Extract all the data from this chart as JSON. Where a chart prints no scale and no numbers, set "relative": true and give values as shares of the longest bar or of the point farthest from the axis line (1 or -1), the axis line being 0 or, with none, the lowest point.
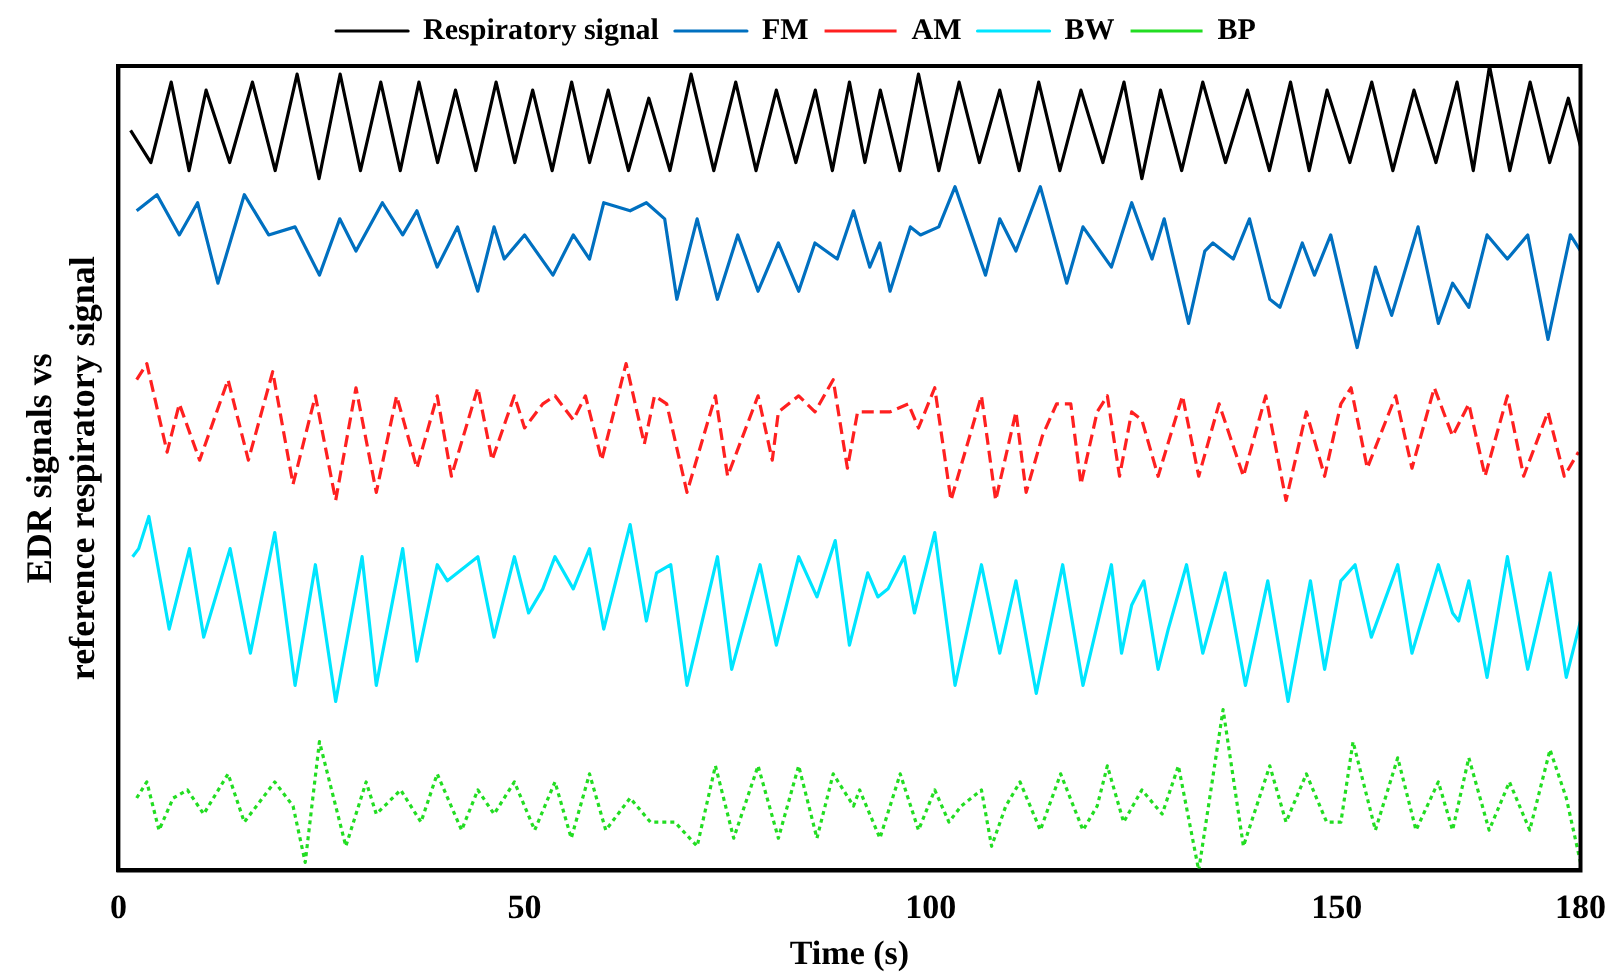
{
  "chart_data": {
    "type": "line",
    "relative": true,
    "xlabel": "Time (s)",
    "ylabel": "EDR signals vs\nreference respiratory signal",
    "xlim": [
      0,
      180
    ],
    "xticks": [
      0,
      50,
      100,
      150,
      180
    ],
    "grid": false,
    "legend": "top",
    "marker": "none",
    "series": [
      {
        "name": "Respiratory signal",
        "color": "#000000",
        "line_style": "solid",
        "x": [
          1.5,
          4,
          6.5,
          8.7,
          10.8,
          13.7,
          16.5,
          19.3,
          22,
          24.7,
          27.3,
          29.8,
          32.3,
          34.7,
          37,
          39.3,
          41.5,
          44,
          46.5,
          48.8,
          51,
          53.4,
          55.8,
          58,
          60.3,
          62.8,
          65.3,
          67.9,
          70.5,
          73.3,
          76,
          78.5,
          81,
          83.4,
          85.8,
          87.9,
          90,
          91.9,
          93.8,
          96.2,
          98.5,
          101,
          103.5,
          106,
          108.5,
          110.9,
          113.3,
          115.9,
          118.5,
          121.2,
          123.8,
          126,
          128.3,
          130.9,
          133.5,
          136.3,
          139,
          141.7,
          144.3,
          146.6,
          148.8,
          151.6,
          154.3,
          156.9,
          159.5,
          162.2,
          164.8,
          166.8,
          168.8,
          171.3,
          173.8,
          176.2,
          178.5,
          180
        ],
        "values": [
          0.92,
          0.88,
          0.98,
          0.87,
          0.97,
          0.88,
          0.98,
          0.87,
          0.99,
          0.86,
          0.99,
          0.87,
          0.98,
          0.87,
          0.98,
          0.88,
          0.97,
          0.87,
          0.98,
          0.88,
          0.97,
          0.87,
          0.98,
          0.88,
          0.97,
          0.87,
          0.96,
          0.87,
          0.99,
          0.87,
          0.98,
          0.87,
          0.97,
          0.88,
          0.97,
          0.87,
          0.98,
          0.88,
          0.97,
          0.87,
          0.99,
          0.87,
          0.98,
          0.88,
          0.97,
          0.87,
          0.98,
          0.87,
          0.97,
          0.88,
          0.98,
          0.86,
          0.97,
          0.87,
          0.98,
          0.88,
          0.97,
          0.87,
          0.98,
          0.87,
          0.97,
          0.88,
          0.98,
          0.87,
          0.97,
          0.88,
          0.98,
          0.87,
          1.0,
          0.87,
          0.98,
          0.88,
          0.96,
          0.9
        ]
      },
      {
        "name": "FM",
        "color": "#0070c0",
        "line_style": "solid",
        "x": [
          2.25,
          4.75,
          7.5,
          9.75,
          12.25,
          15.5,
          18.5,
          21.75,
          24.75,
          27.25,
          29.25,
          32.5,
          35,
          36.75,
          39.25,
          41.75,
          44.25,
          46.25,
          47.5,
          50,
          53.5,
          56,
          58,
          59.75,
          63,
          65,
          67.25,
          68.75,
          71.25,
          73.75,
          76.25,
          78.75,
          81.25,
          83.75,
          85.75,
          88.5,
          90.5,
          92.5,
          93.75,
          95,
          97.5,
          98.75,
          101,
          103,
          106.75,
          108.5,
          110.5,
          113.5,
          116.75,
          118.75,
          122.25,
          124.75,
          127.25,
          128.75,
          131.75,
          133.75,
          134.75,
          137.25,
          139.25,
          141.75,
          143,
          145.75,
          147.25,
          149.25,
          152.5,
          154.75,
          156.75,
          160,
          162.5,
          164.25,
          166.25,
          168.5,
          171,
          173.5,
          176,
          178.75,
          180
        ],
        "values": [
          0.82,
          0.84,
          0.79,
          0.83,
          0.73,
          0.84,
          0.79,
          0.8,
          0.74,
          0.81,
          0.77,
          0.83,
          0.79,
          0.82,
          0.75,
          0.8,
          0.72,
          0.8,
          0.76,
          0.79,
          0.74,
          0.79,
          0.76,
          0.83,
          0.82,
          0.83,
          0.81,
          0.71,
          0.81,
          0.71,
          0.79,
          0.72,
          0.78,
          0.72,
          0.78,
          0.76,
          0.82,
          0.75,
          0.78,
          0.72,
          0.8,
          0.79,
          0.8,
          0.85,
          0.74,
          0.81,
          0.77,
          0.85,
          0.73,
          0.8,
          0.75,
          0.83,
          0.76,
          0.81,
          0.68,
          0.77,
          0.78,
          0.76,
          0.81,
          0.71,
          0.7,
          0.78,
          0.74,
          0.79,
          0.65,
          0.75,
          0.69,
          0.8,
          0.68,
          0.73,
          0.7,
          0.79,
          0.76,
          0.79,
          0.66,
          0.79,
          0.77
        ]
      },
      {
        "name": "AM",
        "color": "#ff2020",
        "line_style": "dashed",
        "x": [
          2.25,
          3.5,
          6,
          7.5,
          10,
          13.5,
          16,
          19,
          21.5,
          24.25,
          26.75,
          29.25,
          31.75,
          34.25,
          36.75,
          39.25,
          41,
          44.25,
          46,
          48.75,
          50,
          52.25,
          53.75,
          56,
          57.5,
          59.5,
          62.5,
          64.75,
          66,
          67.5,
          70,
          73.5,
          75,
          78.75,
          80.5,
          81.25,
          83.75,
          85.75,
          88,
          89.75,
          91,
          93,
          95,
          97.25,
          98.5,
          100.5,
          102.5,
          106.25,
          108,
          110.5,
          111.75,
          113.75,
          115.5,
          117.25,
          118.5,
          120.5,
          121.75,
          123.25,
          124.75,
          126,
          128,
          131,
          133,
          135.5,
          138.5,
          141.25,
          143.75,
          146.25,
          148.5,
          150.5,
          151.75,
          153.75,
          157.25,
          159.25,
          162,
          164.25,
          166.25,
          168.25,
          171,
          173,
          176,
          178,
          179.75
        ],
        "values": [
          0.61,
          0.63,
          0.52,
          0.58,
          0.51,
          0.61,
          0.51,
          0.62,
          0.48,
          0.59,
          0.46,
          0.6,
          0.47,
          0.59,
          0.5,
          0.59,
          0.49,
          0.6,
          0.51,
          0.59,
          0.55,
          0.58,
          0.59,
          0.56,
          0.59,
          0.51,
          0.63,
          0.53,
          0.59,
          0.58,
          0.47,
          0.59,
          0.49,
          0.59,
          0.51,
          0.57,
          0.59,
          0.57,
          0.61,
          0.5,
          0.57,
          0.57,
          0.57,
          0.58,
          0.55,
          0.6,
          0.46,
          0.59,
          0.46,
          0.57,
          0.47,
          0.54,
          0.58,
          0.58,
          0.48,
          0.57,
          0.59,
          0.49,
          0.57,
          0.56,
          0.49,
          0.59,
          0.49,
          0.58,
          0.49,
          0.59,
          0.46,
          0.57,
          0.49,
          0.58,
          0.6,
          0.5,
          0.59,
          0.5,
          0.6,
          0.54,
          0.58,
          0.49,
          0.59,
          0.49,
          0.57,
          0.49,
          0.52
        ]
      },
      {
        "name": "BW",
        "color": "#00e5ff",
        "line_style": "solid",
        "x": [
          1.75,
          2.5,
          3.75,
          6.25,
          8.75,
          10.5,
          13.75,
          16.25,
          19.25,
          21.75,
          24.25,
          26.75,
          30,
          31.75,
          35,
          36.75,
          39.25,
          40.5,
          44.25,
          46.25,
          48.75,
          50.5,
          52.25,
          53.75,
          56,
          58,
          59.75,
          63,
          65,
          66.25,
          68,
          70,
          73.75,
          75.5,
          79,
          81,
          83.75,
          86,
          88.25,
          90,
          92.25,
          93.5,
          94.75,
          96.75,
          98,
          100.5,
          103,
          106.25,
          108.5,
          110.5,
          113,
          116.25,
          118.75,
          122.25,
          123.5,
          124.75,
          126.25,
          128,
          129.25,
          131.5,
          133.5,
          136.25,
          138.75,
          141.5,
          144,
          146.75,
          148.5,
          150.5,
          152.25,
          154.25,
          157.5,
          159.25,
          162.5,
          164.25,
          165,
          166.25,
          168.5,
          171,
          173.5,
          176.25,
          178.25,
          180
        ],
        "values": [
          0.39,
          0.4,
          0.44,
          0.3,
          0.4,
          0.29,
          0.4,
          0.27,
          0.42,
          0.23,
          0.38,
          0.21,
          0.39,
          0.23,
          0.4,
          0.26,
          0.38,
          0.36,
          0.39,
          0.29,
          0.39,
          0.32,
          0.35,
          0.39,
          0.35,
          0.4,
          0.3,
          0.43,
          0.31,
          0.37,
          0.38,
          0.23,
          0.39,
          0.25,
          0.38,
          0.28,
          0.39,
          0.34,
          0.41,
          0.28,
          0.37,
          0.34,
          0.35,
          0.39,
          0.32,
          0.42,
          0.23,
          0.38,
          0.27,
          0.36,
          0.22,
          0.38,
          0.23,
          0.38,
          0.27,
          0.33,
          0.36,
          0.25,
          0.3,
          0.38,
          0.27,
          0.37,
          0.23,
          0.36,
          0.21,
          0.36,
          0.25,
          0.36,
          0.38,
          0.29,
          0.38,
          0.27,
          0.38,
          0.32,
          0.31,
          0.36,
          0.24,
          0.39,
          0.25,
          0.37,
          0.24,
          0.31
        ]
      },
      {
        "name": "BP",
        "color": "#22dd22",
        "line_style": "dotted",
        "x": [
          2.25,
          3.5,
          5,
          6.75,
          8.5,
          10.5,
          13.5,
          15.5,
          19.25,
          21.5,
          23,
          24.75,
          28,
          30.5,
          31.75,
          34.75,
          37.25,
          39.25,
          42.25,
          44.25,
          46.25,
          48.75,
          51.25,
          53.75,
          55.75,
          58,
          60,
          63,
          65.5,
          68.5,
          71.25,
          73.5,
          75.75,
          78.75,
          81.25,
          83.75,
          86,
          88,
          90.5,
          91.25,
          93.75,
          96.25,
          98.5,
          100.5,
          102.25,
          103.75,
          106.25,
          107.5,
          109.25,
          111,
          113.5,
          116,
          118.75,
          120.5,
          121.75,
          123.75,
          126,
          128.5,
          130.5,
          133,
          136,
          138.5,
          141.75,
          143.75,
          146.25,
          148.75,
          150.5,
          152,
          154.75,
          157.5,
          159.75,
          162.5,
          164.25,
          166.25,
          168.75,
          171.25,
          173.75,
          176.25,
          178.25,
          180
        ],
        "values": [
          0.09,
          0.11,
          0.05,
          0.09,
          0.1,
          0.07,
          0.12,
          0.06,
          0.11,
          0.08,
          0.01,
          0.16,
          0.03,
          0.11,
          0.07,
          0.1,
          0.06,
          0.12,
          0.05,
          0.1,
          0.07,
          0.11,
          0.05,
          0.11,
          0.04,
          0.12,
          0.05,
          0.09,
          0.06,
          0.06,
          0.03,
          0.13,
          0.04,
          0.13,
          0.04,
          0.13,
          0.04,
          0.12,
          0.08,
          0.1,
          0.04,
          0.12,
          0.05,
          0.1,
          0.06,
          0.08,
          0.1,
          0.03,
          0.08,
          0.11,
          0.05,
          0.12,
          0.05,
          0.08,
          0.13,
          0.06,
          0.1,
          0.07,
          0.13,
          0,
          0.2,
          0.03,
          0.13,
          0.06,
          0.12,
          0.06,
          0.06,
          0.16,
          0.05,
          0.14,
          0.05,
          0.11,
          0.05,
          0.14,
          0.05,
          0.11,
          0.05,
          0.15,
          0.09,
          0.01
        ]
      }
    ]
  }
}
